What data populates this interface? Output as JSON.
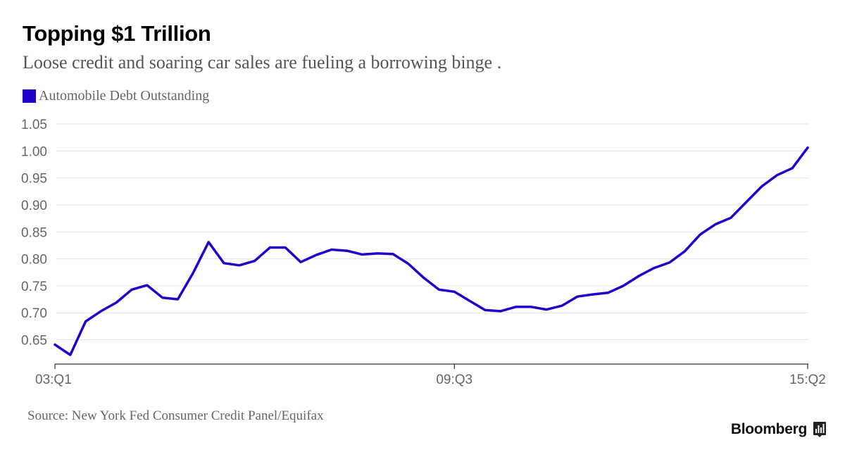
{
  "header": {
    "title": "Topping $1 Trillion",
    "subtitle": "Loose credit and soaring car sales are fueling a borrowing binge ."
  },
  "legend": {
    "label": "Automobile Debt Outstanding",
    "color": "#2200cc"
  },
  "footer": {
    "source": "Source: New York Fed Consumer Credit Panel/Equifax",
    "brand": "Bloomberg",
    "brand_icon": "bloomberg-chart-icon"
  },
  "colors": {
    "line": "#2200cc",
    "grid": "#e3e3e3",
    "axis": "#000000",
    "tick_text": "#666666"
  },
  "chart_data": {
    "type": "line",
    "title": "Topping $1 Trillion",
    "subtitle": "Loose credit and soaring car sales are fueling a borrowing binge .",
    "xlabel": "",
    "ylabel": "",
    "x_tick_labels": [
      "03:Q1",
      "09:Q3",
      "15:Q2"
    ],
    "y_ticks": [
      "0.65",
      "0.70",
      "0.75",
      "0.80",
      "0.85",
      "0.90",
      "0.95",
      "1.00",
      "1.05"
    ],
    "ylim": [
      0.605,
      1.05
    ],
    "grid": true,
    "legend_position": "top-left",
    "series": [
      {
        "name": "Automobile Debt Outstanding",
        "color": "#2200cc",
        "x": [
          "03:Q1",
          "03:Q2",
          "03:Q3",
          "03:Q4",
          "04:Q1",
          "04:Q2",
          "04:Q3",
          "04:Q4",
          "05:Q1",
          "05:Q2",
          "05:Q3",
          "05:Q4",
          "06:Q1",
          "06:Q2",
          "06:Q3",
          "06:Q4",
          "07:Q1",
          "07:Q2",
          "07:Q3",
          "07:Q4",
          "08:Q1",
          "08:Q2",
          "08:Q3",
          "08:Q4",
          "09:Q1",
          "09:Q2",
          "09:Q3",
          "09:Q4",
          "10:Q1",
          "10:Q2",
          "10:Q3",
          "10:Q4",
          "11:Q1",
          "11:Q2",
          "11:Q3",
          "11:Q4",
          "12:Q1",
          "12:Q2",
          "12:Q3",
          "12:Q4",
          "13:Q1",
          "13:Q2",
          "13:Q3",
          "13:Q4",
          "14:Q1",
          "14:Q2",
          "14:Q3",
          "14:Q4",
          "15:Q1",
          "15:Q2"
        ],
        "values": [
          0.641,
          0.622,
          0.684,
          0.703,
          0.719,
          0.743,
          0.751,
          0.728,
          0.725,
          0.774,
          0.831,
          0.792,
          0.788,
          0.796,
          0.821,
          0.821,
          0.794,
          0.807,
          0.817,
          0.815,
          0.808,
          0.81,
          0.809,
          0.791,
          0.765,
          0.743,
          0.739,
          0.722,
          0.705,
          0.703,
          0.711,
          0.711,
          0.706,
          0.713,
          0.73,
          0.734,
          0.737,
          0.75,
          0.768,
          0.783,
          0.793,
          0.814,
          0.845,
          0.864,
          0.876,
          0.905,
          0.934,
          0.955,
          0.968,
          1.006
        ]
      }
    ]
  }
}
